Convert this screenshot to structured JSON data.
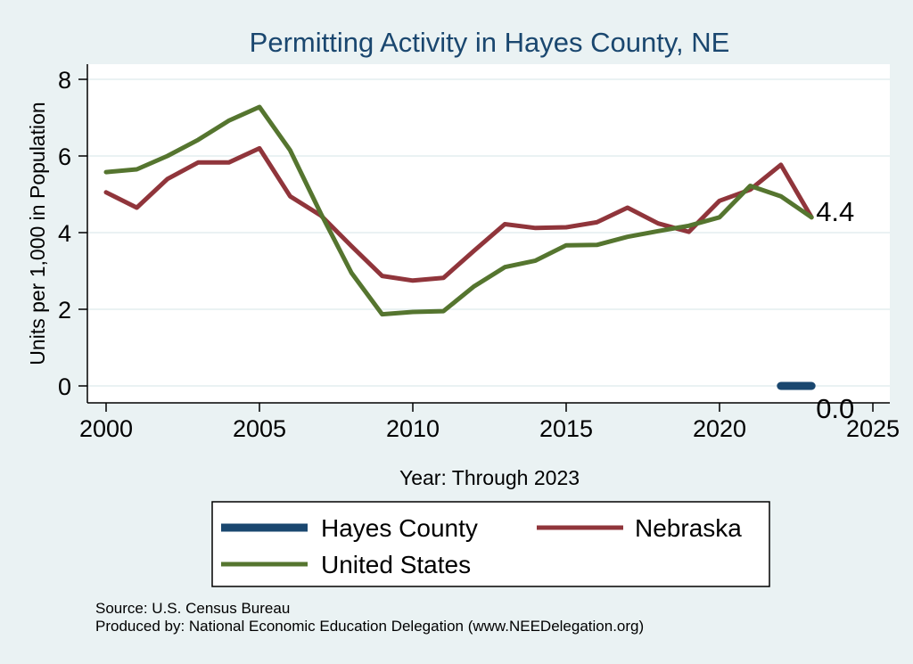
{
  "chart_data": {
    "type": "line",
    "title": "Permitting Activity in Hayes County, NE",
    "xlabel": "Year: Through 2023",
    "ylabel": "Units per 1,000 in Population",
    "xlim": [
      2000,
      2025
    ],
    "ylim": [
      0,
      8
    ],
    "xticks": [
      "2000",
      "2005",
      "2010",
      "2015",
      "2020",
      "2025"
    ],
    "yticks": [
      "0",
      "2",
      "4",
      "6",
      "8"
    ],
    "grid": true,
    "legend_position": "bottom",
    "series": [
      {
        "name": "Hayes County",
        "color": "#1a476f",
        "x": [
          2022,
          2023
        ],
        "values": [
          0.0,
          0.0
        ]
      },
      {
        "name": "Nebraska",
        "color": "#90353b",
        "x": [
          2000,
          2001,
          2002,
          2003,
          2004,
          2005,
          2006,
          2007,
          2008,
          2009,
          2010,
          2011,
          2012,
          2013,
          2014,
          2015,
          2016,
          2017,
          2018,
          2019,
          2020,
          2021,
          2022,
          2023
        ],
        "values": [
          5.05,
          4.65,
          5.4,
          5.83,
          5.83,
          6.2,
          4.95,
          4.45,
          3.65,
          2.87,
          2.75,
          2.82,
          3.53,
          4.22,
          4.12,
          4.14,
          4.27,
          4.65,
          4.24,
          4.02,
          4.83,
          5.12,
          5.77,
          4.4
        ]
      },
      {
        "name": "United States",
        "color": "#55752f",
        "x": [
          2000,
          2001,
          2002,
          2003,
          2004,
          2005,
          2006,
          2007,
          2008,
          2009,
          2010,
          2011,
          2012,
          2013,
          2014,
          2015,
          2016,
          2017,
          2018,
          2019,
          2020,
          2021,
          2022,
          2023
        ],
        "values": [
          5.58,
          5.65,
          6.0,
          6.42,
          6.92,
          7.28,
          6.15,
          4.5,
          2.95,
          1.87,
          1.93,
          1.95,
          2.6,
          3.1,
          3.27,
          3.67,
          3.68,
          3.89,
          4.04,
          4.18,
          4.4,
          5.22,
          4.95,
          4.4
        ]
      }
    ],
    "annotations": [
      {
        "text": "4.4",
        "x": 2023,
        "y": 4.4
      },
      {
        "text": "0.0",
        "x": 2023,
        "y": 0.0
      }
    ],
    "notes": [
      "Source: U.S. Census Bureau",
      "Produced by: National Economic Education Delegation (www.NEEDelegation.org)"
    ],
    "colors": {
      "background": "#eaf2f3",
      "plot_background": "#ffffff",
      "title": "#1a476f",
      "grid": "#eaf2f3"
    }
  }
}
